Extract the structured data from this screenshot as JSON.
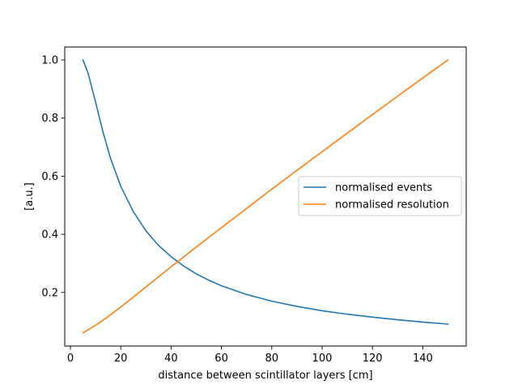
{
  "chart_data": {
    "type": "line",
    "title": "",
    "xlabel": "distance between scintillator layers [cm]",
    "ylabel": "[a.u.]",
    "xlim": [
      -2.25,
      157.25
    ],
    "ylim": [
      0.0155,
      1.0445
    ],
    "xticks": [
      0,
      20,
      40,
      60,
      80,
      100,
      120,
      140
    ],
    "yticks": [
      0.2,
      0.4,
      0.6,
      0.8,
      1.0
    ],
    "grid": false,
    "legend_position": "center-right",
    "series": [
      {
        "name": "normalised events",
        "color": "#1f77b4",
        "x": [
          5,
          7,
          10,
          13,
          16,
          20,
          25,
          30,
          35,
          40,
          45,
          50,
          55,
          60,
          70,
          80,
          90,
          100,
          110,
          120,
          130,
          140,
          150
        ],
        "y": [
          1.0,
          0.955,
          0.855,
          0.75,
          0.66,
          0.565,
          0.478,
          0.412,
          0.362,
          0.323,
          0.291,
          0.264,
          0.242,
          0.223,
          0.193,
          0.17,
          0.152,
          0.137,
          0.125,
          0.115,
          0.106,
          0.098,
          0.091
        ]
      },
      {
        "name": "normalised resolution",
        "color": "#ff7f0e",
        "x": [
          5,
          10,
          15,
          20,
          25,
          30,
          40,
          50,
          60,
          70,
          80,
          90,
          100,
          110,
          120,
          130,
          140,
          150
        ],
        "y": [
          0.061,
          0.087,
          0.117,
          0.15,
          0.184,
          0.219,
          0.288,
          0.356,
          0.423,
          0.489,
          0.555,
          0.62,
          0.684,
          0.748,
          0.812,
          0.875,
          0.938,
          1.0
        ]
      }
    ]
  }
}
